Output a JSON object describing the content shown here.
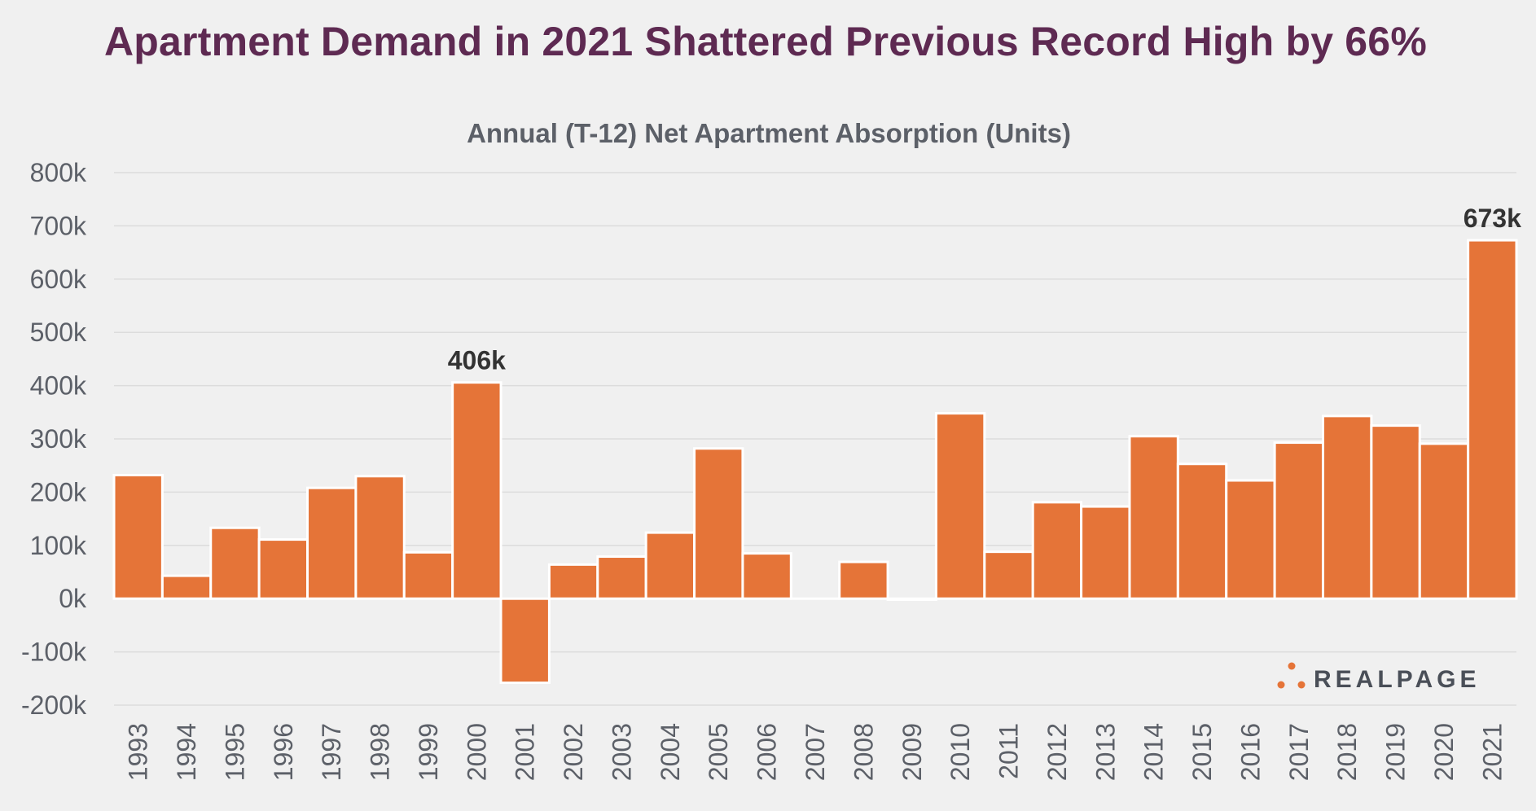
{
  "headline": "Apartment Demand in 2021 Shattered Previous Record High by 66%",
  "logo": {
    "text": "REALPAGE",
    "dot_color": "#e57438",
    "text_color": "#4a4f58"
  },
  "colors": {
    "bar": "#e57438",
    "bar_stroke": "#ffffff",
    "grid": "#dcdcdc",
    "background": "#f0f0f0",
    "title": "#5e2a52"
  },
  "chart_data": {
    "type": "bar",
    "title": "Annual (T-12) Net Apartment Absorption (Units)",
    "xlabel": "",
    "ylabel": "",
    "ylim": [
      -200000,
      800000
    ],
    "yticks": [
      800000,
      700000,
      600000,
      500000,
      400000,
      300000,
      200000,
      100000,
      0,
      -100000,
      -200000
    ],
    "ytick_labels": [
      "800k",
      "700k",
      "600k",
      "500k",
      "400k",
      "300k",
      "200k",
      "100k",
      "0k",
      "-100k",
      "-200k"
    ],
    "grid": true,
    "legend": "none",
    "categories": [
      "1993",
      "1994",
      "1995",
      "1996",
      "1997",
      "1998",
      "1999",
      "2000",
      "2001",
      "2002",
      "2003",
      "2004",
      "2005",
      "2006",
      "2007",
      "2008",
      "2009",
      "2010",
      "2011",
      "2012",
      "2013",
      "2014",
      "2015",
      "2016",
      "2017",
      "2018",
      "2019",
      "2020",
      "2021"
    ],
    "values": [
      232000,
      43000,
      133000,
      111000,
      208000,
      230000,
      87000,
      406000,
      -158000,
      64000,
      79000,
      124000,
      282000,
      85000,
      0,
      69000,
      -2000,
      348000,
      88000,
      181000,
      173000,
      305000,
      253000,
      222000,
      293000,
      343000,
      325000,
      291000,
      673000
    ],
    "data_labels": [
      {
        "category": "2000",
        "text": "406k"
      },
      {
        "category": "2021",
        "text": "673k"
      }
    ]
  }
}
